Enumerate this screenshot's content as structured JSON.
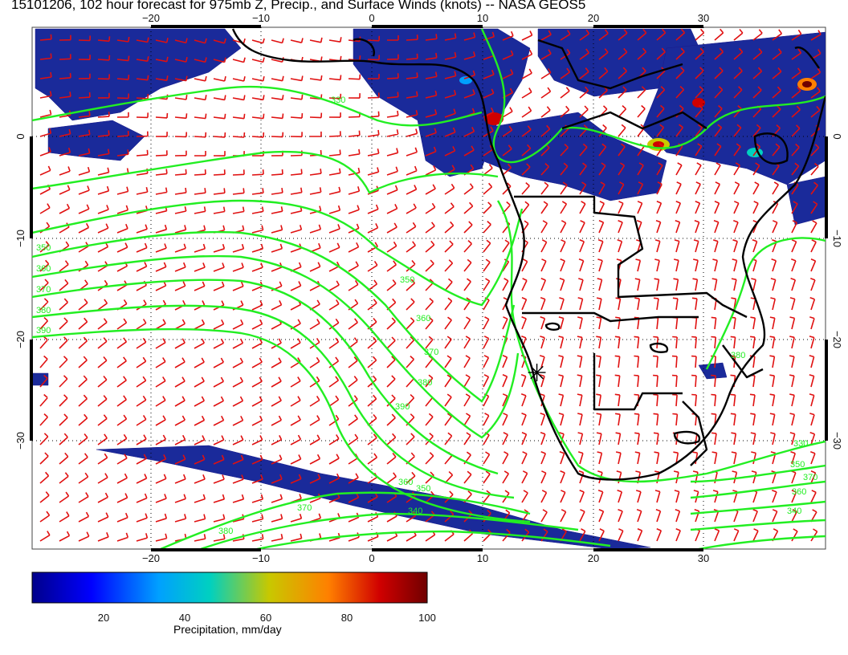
{
  "title": "15101206, 102 hour forecast for 975mb Z, Precip., and Surface Winds (knots) -- NASA GEOS5",
  "map": {
    "lon_ticks": [
      "−20",
      "−10",
      "0",
      "10",
      "20",
      "30"
    ],
    "lat_ticks": [
      "0",
      "−10",
      "−20",
      "−30"
    ],
    "contour_labels": [
      "330",
      "350",
      "360",
      "370",
      "380",
      "390",
      "350",
      "360",
      "370",
      "380",
      "390",
      "340",
      "350",
      "360",
      "370",
      "380",
      "330",
      "340",
      "350",
      "360",
      "370",
      "380"
    ],
    "marker_glyph": "✳"
  },
  "colorbar": {
    "ticks": [
      "20",
      "40",
      "60",
      "80",
      "100"
    ],
    "label": "Precipitation, mm/day",
    "colors": [
      "#00008b",
      "#0000ff",
      "#00a0ff",
      "#00d0c0",
      "#c8c800",
      "#ff8000",
      "#d00000",
      "#700000"
    ]
  },
  "colors": {
    "contour": "#22ee22",
    "wind": "#e01010",
    "coast": "#000000",
    "precip_low": "#1a2a9a"
  }
}
